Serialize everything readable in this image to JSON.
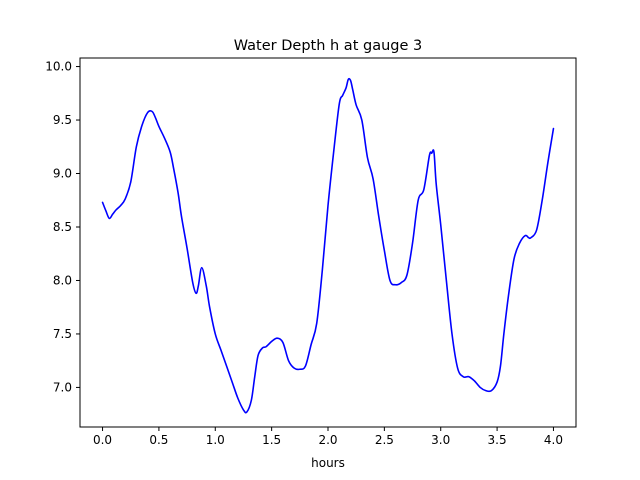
{
  "chart_data": {
    "type": "line",
    "title": "Water Depth h at gauge 3",
    "xlabel": "hours",
    "ylabel": "",
    "xlim": [
      -0.2,
      4.2
    ],
    "ylim": [
      6.63,
      10.08
    ],
    "xticks": [
      0.0,
      0.5,
      1.0,
      1.5,
      2.0,
      2.5,
      3.0,
      3.5,
      4.0
    ],
    "xtick_labels": [
      "0.0",
      "0.5",
      "1.0",
      "1.5",
      "2.0",
      "2.5",
      "3.0",
      "3.5",
      "4.0"
    ],
    "yticks": [
      7.0,
      7.5,
      8.0,
      8.5,
      9.0,
      9.5,
      10.0
    ],
    "ytick_labels": [
      "7.0",
      "7.5",
      "8.0",
      "8.5",
      "9.0",
      "9.5",
      "10.0"
    ],
    "grid": false,
    "series": [
      {
        "color": "#0000ff",
        "x": [
          0.0,
          0.03,
          0.06,
          0.09,
          0.12,
          0.16,
          0.2,
          0.25,
          0.3,
          0.35,
          0.4,
          0.44,
          0.47,
          0.5,
          0.55,
          0.6,
          0.63,
          0.67,
          0.7,
          0.75,
          0.8,
          0.83,
          0.85,
          0.88,
          0.92,
          0.95,
          1.0,
          1.05,
          1.1,
          1.15,
          1.2,
          1.25,
          1.28,
          1.32,
          1.35,
          1.38,
          1.42,
          1.45,
          1.5,
          1.55,
          1.6,
          1.65,
          1.7,
          1.75,
          1.8,
          1.85,
          1.9,
          1.95,
          2.0,
          2.05,
          2.1,
          2.13,
          2.16,
          2.18,
          2.2,
          2.22,
          2.25,
          2.3,
          2.35,
          2.4,
          2.45,
          2.5,
          2.55,
          2.6,
          2.65,
          2.7,
          2.75,
          2.8,
          2.85,
          2.9,
          2.92,
          2.94,
          2.96,
          3.0,
          3.05,
          3.1,
          3.15,
          3.2,
          3.25,
          3.3,
          3.35,
          3.4,
          3.45,
          3.5,
          3.53,
          3.56,
          3.6,
          3.65,
          3.7,
          3.75,
          3.78,
          3.8,
          3.85,
          3.9,
          3.95,
          4.0
        ],
        "y": [
          8.73,
          8.65,
          8.58,
          8.62,
          8.66,
          8.7,
          8.76,
          8.92,
          9.25,
          9.45,
          9.57,
          9.58,
          9.52,
          9.44,
          9.33,
          9.2,
          9.05,
          8.82,
          8.6,
          8.3,
          7.98,
          7.88,
          7.95,
          8.12,
          7.95,
          7.75,
          7.5,
          7.35,
          7.2,
          7.05,
          6.9,
          6.79,
          6.77,
          6.88,
          7.1,
          7.3,
          7.37,
          7.38,
          7.43,
          7.46,
          7.42,
          7.25,
          7.18,
          7.17,
          7.2,
          7.4,
          7.6,
          8.1,
          8.7,
          9.2,
          9.65,
          9.73,
          9.8,
          9.88,
          9.87,
          9.78,
          9.64,
          9.5,
          9.15,
          8.95,
          8.6,
          8.28,
          8.0,
          7.96,
          7.98,
          8.05,
          8.35,
          8.75,
          8.85,
          9.17,
          9.19,
          9.2,
          8.9,
          8.52,
          8.0,
          7.5,
          7.18,
          7.1,
          7.1,
          7.06,
          7.0,
          6.97,
          6.97,
          7.05,
          7.2,
          7.5,
          7.85,
          8.2,
          8.35,
          8.42,
          8.4,
          8.4,
          8.47,
          8.75,
          9.1,
          9.42
        ]
      }
    ]
  }
}
